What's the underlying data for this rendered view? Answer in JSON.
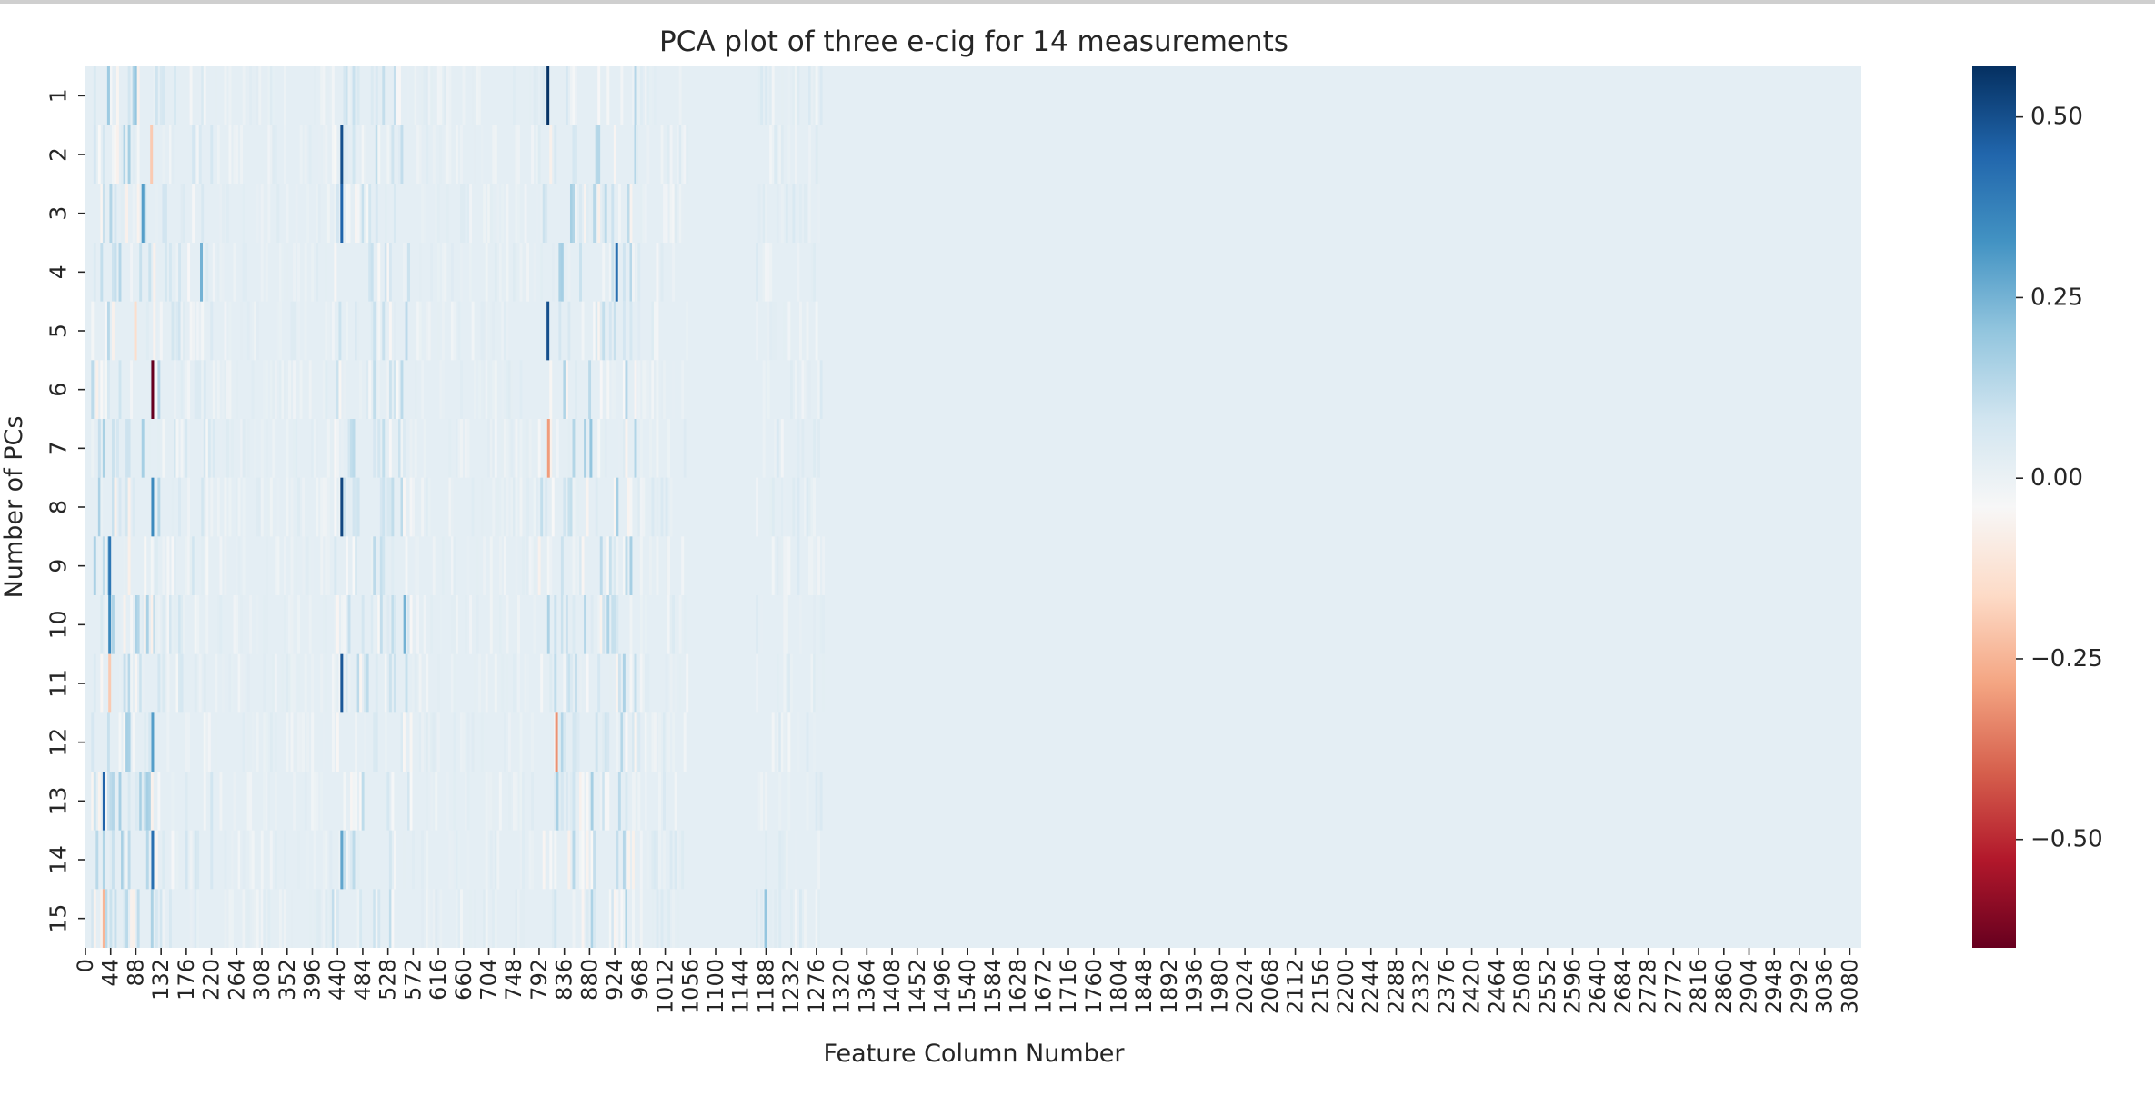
{
  "chart_data": {
    "type": "heatmap",
    "title": "PCA plot of three e-cig for 14 measurements",
    "xlabel": "Feature Column Number",
    "ylabel": "Number of PCs",
    "y_categories": [
      "1",
      "2",
      "3",
      "4",
      "5",
      "6",
      "7",
      "8",
      "9",
      "10",
      "11",
      "12",
      "13",
      "14",
      "15"
    ],
    "x_range": [
      0,
      3100
    ],
    "x_ticks": [
      "0",
      "44",
      "88",
      "132",
      "176",
      "220",
      "264",
      "308",
      "352",
      "396",
      "440",
      "484",
      "528",
      "572",
      "616",
      "660",
      "704",
      "748",
      "792",
      "836",
      "880",
      "924",
      "968",
      "1012",
      "1056",
      "1100",
      "1144",
      "1188",
      "1232",
      "1276",
      "1320",
      "1364",
      "1408",
      "1452",
      "1496",
      "1540",
      "1584",
      "1628",
      "1672",
      "1716",
      "1760",
      "1804",
      "1848",
      "1892",
      "1936",
      "1980",
      "2024",
      "2068",
      "2112",
      "2156",
      "2200",
      "2244",
      "2288",
      "2332",
      "2376",
      "2420",
      "2464",
      "2508",
      "2552",
      "2596",
      "2640",
      "2684",
      "2728",
      "2772",
      "2816",
      "2860",
      "2904",
      "2948",
      "2992",
      "3036",
      "3080"
    ],
    "background_value": 0.02,
    "colorbar": {
      "colormap": "RdBu",
      "range": [
        -0.65,
        0.57
      ],
      "ticks": [
        0.5,
        0.25,
        0.0,
        -0.25,
        -0.5
      ],
      "tick_labels": [
        "0.50",
        "0.25",
        "0.00",
        "−0.25",
        "−0.50"
      ]
    },
    "highlights": [
      {
        "row": 1,
        "col": 805,
        "value": 0.56
      },
      {
        "row": 1,
        "col": 38,
        "value": 0.18
      },
      {
        "row": 1,
        "col": 85,
        "value": 0.2
      },
      {
        "row": 2,
        "col": 445,
        "value": 0.5
      },
      {
        "row": 2,
        "col": 113,
        "value": -0.2
      },
      {
        "row": 3,
        "col": 445,
        "value": 0.45
      },
      {
        "row": 3,
        "col": 98,
        "value": 0.3
      },
      {
        "row": 4,
        "col": 925,
        "value": 0.42
      },
      {
        "row": 4,
        "col": 200,
        "value": 0.25
      },
      {
        "row": 5,
        "col": 805,
        "value": 0.5
      },
      {
        "row": 5,
        "col": 85,
        "value": -0.15
      },
      {
        "row": 6,
        "col": 115,
        "value": -0.65
      },
      {
        "row": 7,
        "col": 806,
        "value": -0.3
      },
      {
        "row": 7,
        "col": 880,
        "value": 0.2
      },
      {
        "row": 8,
        "col": 445,
        "value": 0.52
      },
      {
        "row": 8,
        "col": 115,
        "value": 0.35
      },
      {
        "row": 9,
        "col": 40,
        "value": 0.4
      },
      {
        "row": 10,
        "col": 40,
        "value": 0.35
      },
      {
        "row": 10,
        "col": 555,
        "value": 0.25
      },
      {
        "row": 11,
        "col": 445,
        "value": 0.48
      },
      {
        "row": 11,
        "col": 40,
        "value": -0.2
      },
      {
        "row": 12,
        "col": 820,
        "value": -0.32
      },
      {
        "row": 12,
        "col": 115,
        "value": 0.3
      },
      {
        "row": 13,
        "col": 30,
        "value": 0.45
      },
      {
        "row": 14,
        "col": 115,
        "value": 0.42
      },
      {
        "row": 14,
        "col": 445,
        "value": 0.28
      },
      {
        "row": 15,
        "col": 30,
        "value": -0.25
      },
      {
        "row": 15,
        "col": 1185,
        "value": 0.2
      }
    ]
  }
}
